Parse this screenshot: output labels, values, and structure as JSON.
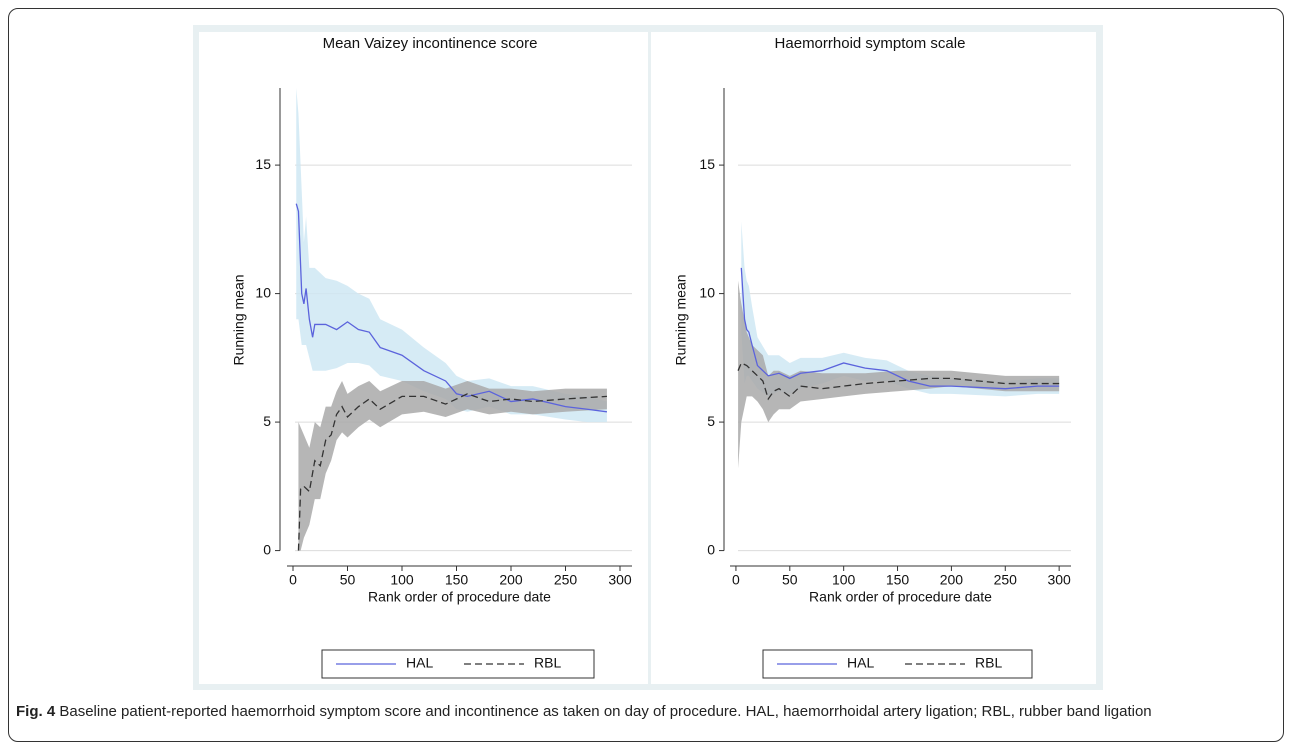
{
  "chart_data": [
    {
      "type": "line",
      "title": "Mean Vaizey incontinence score",
      "x_label": "Rank order of procedure date",
      "y_label": "Running mean",
      "xlim": [
        -5.5,
        311
      ],
      "ylim": [
        -0.6,
        18
      ],
      "xticks": [
        0,
        50,
        100,
        150,
        200,
        250,
        300
      ],
      "yticks": [
        0,
        5,
        10,
        15
      ],
      "grid": true,
      "legend": "bottom",
      "series": [
        {
          "name": "HAL",
          "color": "#5b63dc",
          "band_color": "#cfe8f3",
          "dash": false,
          "x": [
            3,
            5,
            8,
            10,
            12,
            15,
            18,
            20,
            30,
            40,
            50,
            60,
            70,
            80,
            100,
            120,
            140,
            150,
            160,
            180,
            200,
            220,
            250,
            270,
            288
          ],
          "values": [
            13.5,
            13.2,
            10,
            9.6,
            10.2,
            9,
            8.3,
            8.8,
            8.8,
            8.6,
            8.9,
            8.6,
            8.5,
            7.9,
            7.6,
            7.0,
            6.6,
            6.1,
            6.0,
            6.2,
            5.8,
            5.9,
            5.6,
            5.5,
            5.4
          ],
          "lower": [
            9,
            9,
            8,
            8,
            8,
            7.5,
            7,
            7,
            7,
            7.1,
            7.3,
            7.3,
            7.2,
            6.8,
            6.6,
            6.2,
            5.9,
            5.5,
            5.4,
            5.6,
            5.3,
            5.3,
            5.1,
            5.0,
            5.0
          ],
          "upper": [
            18,
            17,
            14,
            12,
            13,
            11,
            11,
            11,
            10.6,
            10.5,
            10.3,
            10,
            9.8,
            9,
            8.6,
            7.9,
            7.3,
            6.8,
            6.6,
            6.7,
            6.4,
            6.4,
            6.1,
            6.0,
            5.8
          ]
        },
        {
          "name": "RBL",
          "color": "#333333",
          "band_color": "#a9a9a9",
          "dash": true,
          "x": [
            5,
            7,
            10,
            15,
            20,
            25,
            30,
            35,
            40,
            45,
            50,
            60,
            70,
            80,
            100,
            120,
            140,
            160,
            180,
            200,
            220,
            250,
            288
          ],
          "values": [
            0,
            2.4,
            2.5,
            2.3,
            3.5,
            3.3,
            4.3,
            4.5,
            5.3,
            5.6,
            5.2,
            5.6,
            5.9,
            5.5,
            6.0,
            6.0,
            5.7,
            6.1,
            5.8,
            5.9,
            5.8,
            5.9,
            6.0
          ],
          "lower": [
            0,
            0,
            0.5,
            1,
            2,
            2,
            3,
            3.5,
            4.3,
            4.6,
            4.4,
            4.8,
            5.1,
            4.8,
            5.3,
            5.4,
            5.2,
            5.5,
            5.3,
            5.4,
            5.3,
            5.4,
            5.5
          ],
          "upper": [
            5,
            4.8,
            4.5,
            4,
            5,
            4.8,
            5.6,
            5.6,
            6.2,
            6.6,
            6.1,
            6.4,
            6.6,
            6.2,
            6.6,
            6.6,
            6.3,
            6.6,
            6.3,
            6.3,
            6.2,
            6.3,
            6.3
          ]
        }
      ]
    },
    {
      "type": "line",
      "title": "Haemorrhoid symptom scale",
      "x_label": "Rank order of procedure date",
      "y_label": "Running mean",
      "xlim": [
        -5.5,
        311
      ],
      "ylim": [
        -0.6,
        18
      ],
      "xticks": [
        0,
        50,
        100,
        150,
        200,
        250,
        300
      ],
      "yticks": [
        0,
        5,
        10,
        15
      ],
      "grid": true,
      "legend": "bottom",
      "series": [
        {
          "name": "HAL",
          "color": "#5b63dc",
          "band_color": "#cfe8f3",
          "dash": false,
          "x": [
            5,
            8,
            10,
            12,
            15,
            20,
            30,
            40,
            50,
            60,
            80,
            100,
            120,
            140,
            160,
            180,
            200,
            250,
            280,
            300
          ],
          "values": [
            11,
            9,
            8.6,
            8.5,
            8,
            7.2,
            6.8,
            6.9,
            6.7,
            6.9,
            7.0,
            7.3,
            7.1,
            7.0,
            6.6,
            6.4,
            6.4,
            6.3,
            6.4,
            6.4
          ],
          "lower": [
            8.5,
            6.5,
            6.8,
            6.8,
            6.6,
            6.3,
            6,
            6.2,
            6.1,
            6.3,
            6.5,
            6.8,
            6.6,
            6.6,
            6.3,
            6.1,
            6.1,
            6.0,
            6.1,
            6.1
          ],
          "upper": [
            12.8,
            11,
            10.5,
            10.3,
            9.5,
            8.3,
            7.6,
            7.6,
            7.3,
            7.5,
            7.5,
            7.7,
            7.5,
            7.4,
            7.0,
            6.8,
            6.7,
            6.6,
            6.7,
            6.7
          ]
        },
        {
          "name": "RBL",
          "color": "#333333",
          "band_color": "#a9a9a9",
          "dash": true,
          "x": [
            2,
            5,
            10,
            15,
            20,
            25,
            30,
            35,
            40,
            50,
            60,
            80,
            100,
            120,
            150,
            180,
            200,
            250,
            280,
            300
          ],
          "values": [
            7.0,
            7.3,
            7.2,
            7.0,
            6.8,
            6.6,
            5.9,
            6.2,
            6.3,
            6.0,
            6.4,
            6.3,
            6.4,
            6.5,
            6.6,
            6.7,
            6.7,
            6.5,
            6.5,
            6.5
          ],
          "lower": [
            3.2,
            5,
            6,
            6,
            5.8,
            5.5,
            5,
            5.3,
            5.5,
            5.5,
            5.8,
            5.9,
            6,
            6.1,
            6.2,
            6.3,
            6.4,
            6.2,
            6.2,
            6.2
          ],
          "upper": [
            10.5,
            9.6,
            8.5,
            8,
            7.8,
            7.6,
            6.8,
            7,
            7,
            6.8,
            7,
            6.9,
            6.9,
            6.9,
            7,
            7,
            7,
            6.8,
            6.8,
            6.8
          ]
        }
      ]
    }
  ],
  "caption": {
    "label": "Fig. 4",
    "text": "Baseline patient-reported haemorrhoid symptom score and incontinence as taken on day of procedure. HAL, haemorrhoidal artery ligation; RBL, rubber band ligation"
  }
}
